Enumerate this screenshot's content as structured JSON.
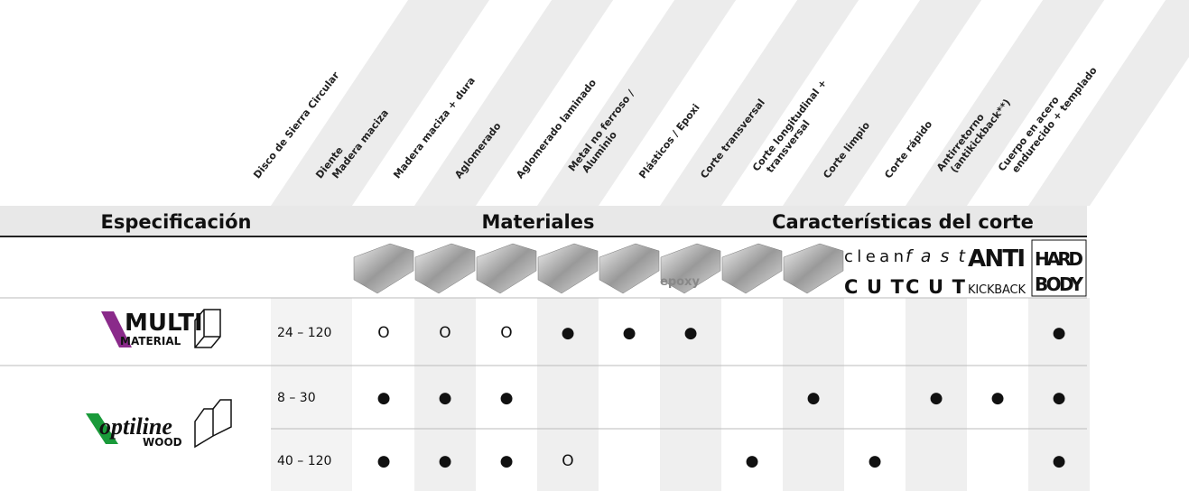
{
  "columns": [
    [
      "Disco de Sierra Circular"
    ],
    [
      "Diente"
    ],
    [
      "Madera maciza"
    ],
    [
      "Madera maciza + dura"
    ],
    [
      "Aglomerado"
    ],
    [
      "Aglomerado laminado"
    ],
    [
      "Metal no ferroso /",
      "Aluminio"
    ],
    [
      "Plásticos / Epoxi"
    ],
    [
      "Corte transversal"
    ],
    [
      "Corte longitudinal +",
      "transversal"
    ],
    [
      "Corte limpio"
    ],
    [
      "Corte rápido"
    ],
    [
      "Antirretorno",
      "(antikickback**)"
    ],
    [
      "Cuerpo en acero",
      "endurecido + templado"
    ]
  ],
  "groups": [
    "Especificación",
    "Materiales",
    "Características del corte"
  ],
  "icon_texts": [
    "epoxy",
    "clean",
    "CUT",
    "fast",
    "CUT",
    "ANTI",
    "KICKBACK",
    "HARD",
    "BODY"
  ],
  "products": [
    {
      "logo": [
        "MULTI",
        "MATERIAL"
      ],
      "rows": [
        {
          "diente": "24 – 120",
          "cells": [
            "O",
            "O",
            "O",
            "●",
            "●",
            "●",
            null,
            null,
            null,
            null,
            null,
            "●"
          ]
        }
      ]
    },
    {
      "logo": [
        "optiline",
        "WOOD"
      ],
      "rows": [
        {
          "diente": "8 – 30",
          "cells": [
            "●",
            "●",
            "●",
            null,
            null,
            null,
            null,
            "●",
            null,
            "●",
            "●",
            "●"
          ]
        },
        {
          "diente": "40 – 120",
          "cells": [
            "●",
            "●",
            "●",
            "O",
            null,
            null,
            "●",
            null,
            "●",
            null,
            null,
            "●"
          ]
        }
      ]
    }
  ]
}
